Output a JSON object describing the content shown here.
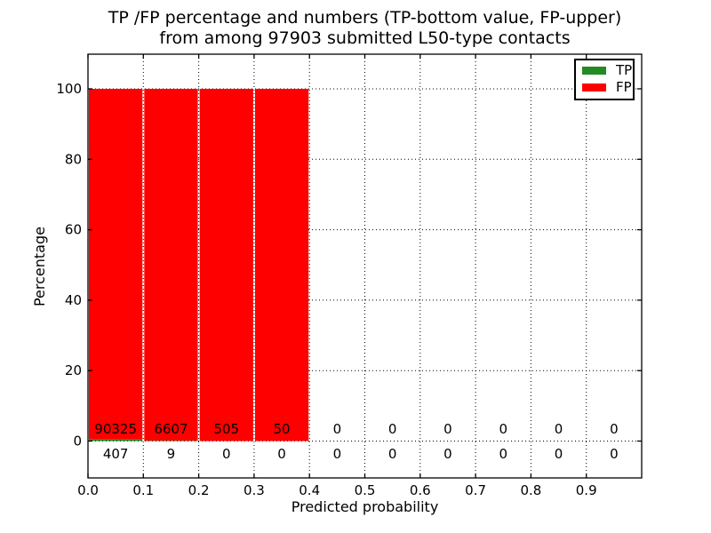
{
  "chart_data": {
    "type": "bar",
    "stacked": true,
    "title_line1": "TP /FP percentage and numbers (TP-bottom value, FP-upper)",
    "title_line2": "from among 97903 submitted L50-type contacts",
    "total_submitted": 97903,
    "xlabel": "Predicted probability",
    "ylabel": "Percentage",
    "xlim": [
      0.0,
      1.0
    ],
    "ylim": [
      -10.5,
      110
    ],
    "grid": true,
    "bin_width": 0.1,
    "x_tick_values": [
      0.0,
      0.1,
      0.2,
      0.3,
      0.4,
      0.5,
      0.6,
      0.7,
      0.8,
      0.9
    ],
    "x_tick_labels": [
      "0.0",
      "0.1",
      "0.2",
      "0.3",
      "0.4",
      "0.5",
      "0.6",
      "0.7",
      "0.8",
      "0.9"
    ],
    "y_tick_values": [
      0,
      20,
      40,
      60,
      80,
      100
    ],
    "y_tick_labels": [
      "0",
      "20",
      "40",
      "60",
      "80",
      "100"
    ],
    "series": [
      {
        "name": "TP",
        "color": "#228b22",
        "counts": [
          407,
          9,
          0,
          0,
          0,
          0,
          0,
          0,
          0,
          0
        ],
        "label_row": "below-axis"
      },
      {
        "name": "FP",
        "color": "#ff0000",
        "counts": [
          90325,
          6607,
          505,
          50,
          0,
          0,
          0,
          0,
          0,
          0
        ],
        "label_row": "above-axis"
      }
    ],
    "legend": {
      "position": "upper right",
      "entries": [
        {
          "label": "TP",
          "color": "#228b22"
        },
        {
          "label": "FP",
          "color": "#ff0000"
        }
      ]
    }
  }
}
